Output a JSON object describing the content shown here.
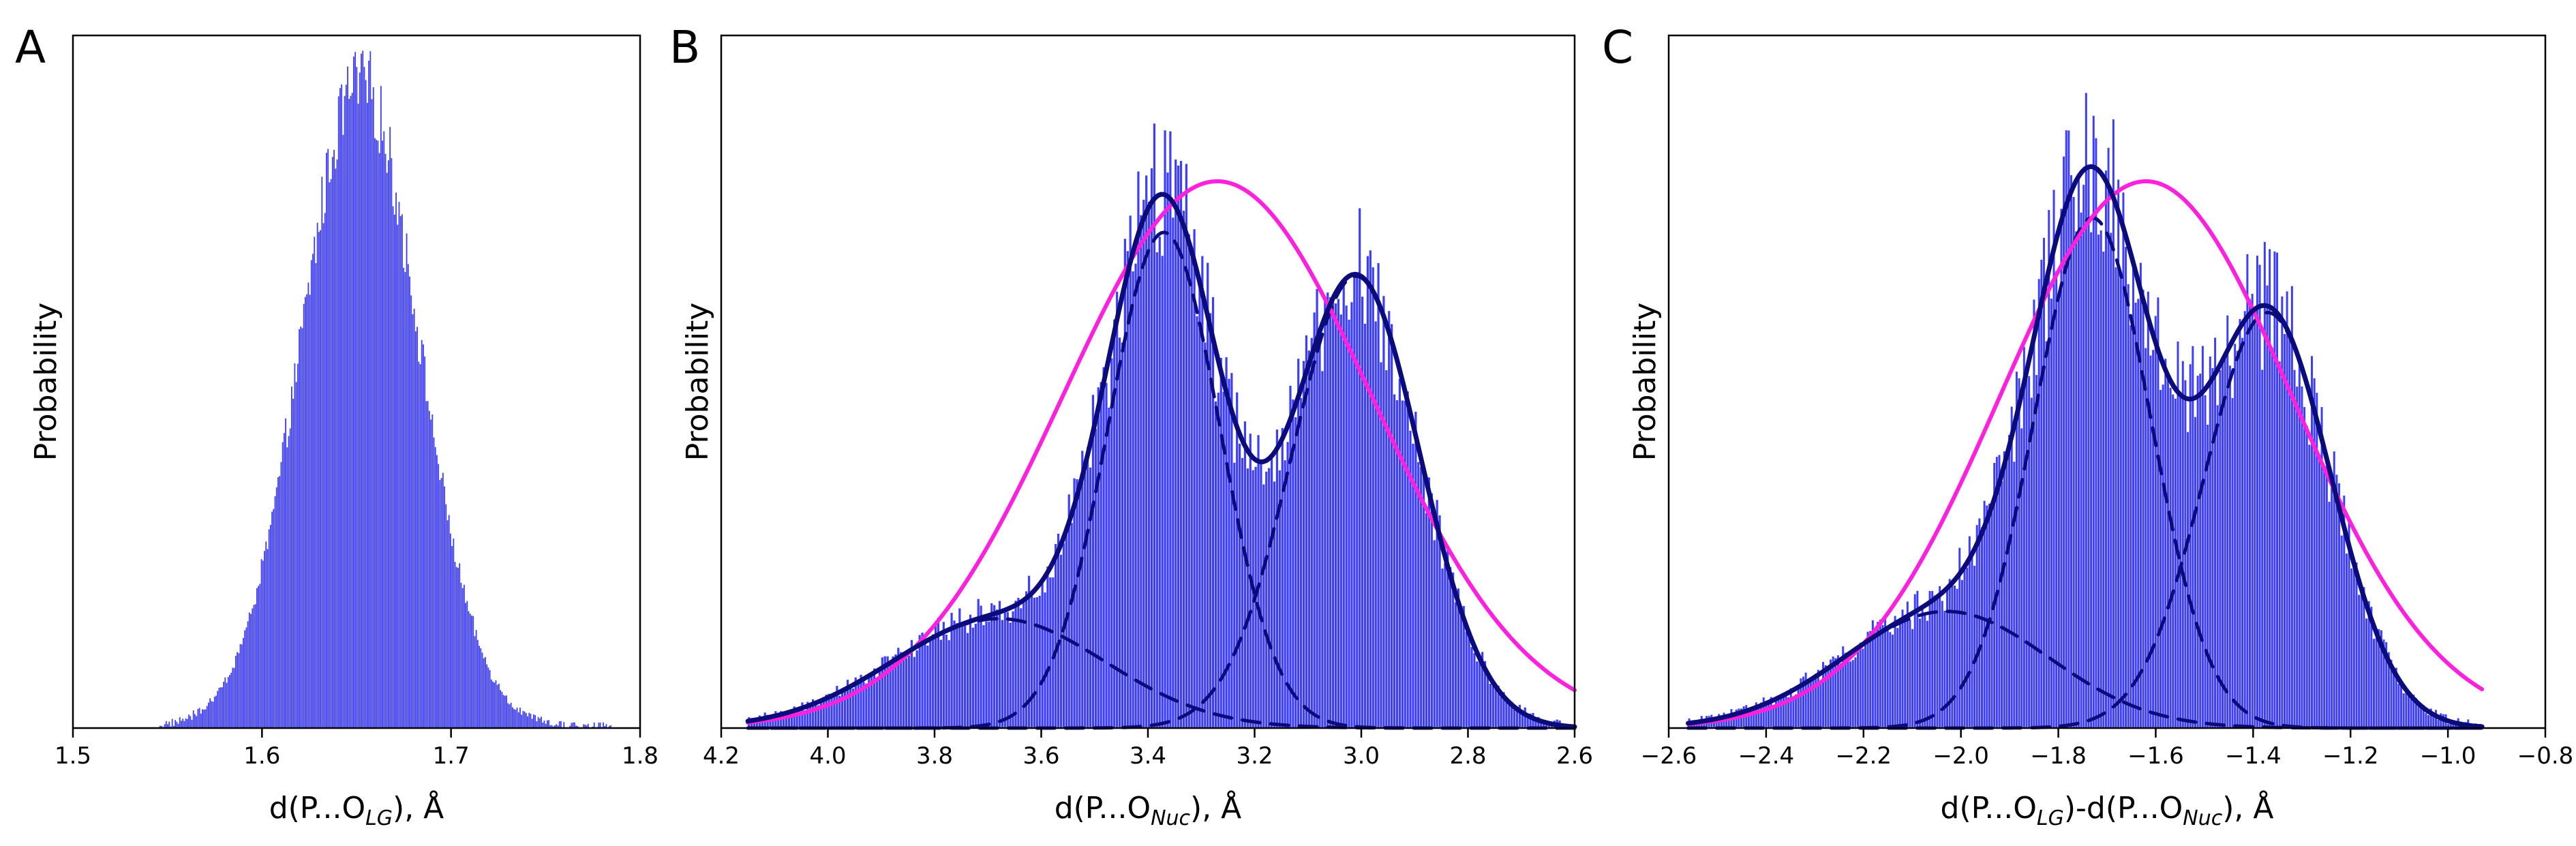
{
  "colors": {
    "bars": "#3d3dff",
    "total_fit": "#0b0b7a",
    "component_fit": "#0b0b7a",
    "single_gaussian": "#ff22dd"
  },
  "chart_data": [
    {
      "panel": "A",
      "type": "bar",
      "subtype": "histogram",
      "xlabel": "d(P...O",
      "xlabel_sub": "LG",
      "xlabel_tail": "), Å",
      "ylabel": "Probability",
      "xlim": [
        1.5,
        1.8
      ],
      "x_reversed": false,
      "xticks": [
        1.5,
        1.6,
        1.7,
        1.8
      ],
      "xtick_labels": [
        "1.5",
        "1.6",
        "1.7",
        "1.8"
      ],
      "y_tick_labels_visible": false,
      "histogram": {
        "range": [
          1.545,
          1.785
        ],
        "bins": 300,
        "center": 1.652,
        "sigma": 0.031,
        "peak": 0.93,
        "noise": 0.06
      },
      "curves": []
    },
    {
      "panel": "B",
      "type": "bar",
      "subtype": "histogram_with_fits",
      "xlabel": "d(P...O",
      "xlabel_sub": "Nuc",
      "xlabel_tail": "), Å",
      "ylabel": "Probability",
      "xlim": [
        4.2,
        2.6
      ],
      "x_reversed": true,
      "xticks": [
        4.2,
        4.0,
        3.8,
        3.6,
        3.4,
        3.2,
        3.0,
        2.8,
        2.6
      ],
      "xtick_labels": [
        "4.2",
        "4.0",
        "3.8",
        "3.6",
        "3.4",
        "3.2",
        "3.0",
        "2.8",
        "2.6"
      ],
      "y_tick_labels_visible": false,
      "histogram": {
        "range": [
          4.15,
          2.6
        ],
        "bins": 310,
        "noise": 0.14
      },
      "components": [
        {
          "name": "component 1",
          "center": 3.68,
          "sigma": 0.2,
          "amplitude": 0.15
        },
        {
          "name": "component 2",
          "center": 3.37,
          "sigma": 0.105,
          "amplitude": 0.68
        },
        {
          "name": "component 3",
          "center": 3.01,
          "sigma": 0.12,
          "amplitude": 0.62
        }
      ],
      "single_gaussian": {
        "center": 3.27,
        "sigma": 0.29,
        "amplitude": 0.75
      }
    },
    {
      "panel": "C",
      "type": "bar",
      "subtype": "histogram_with_fits",
      "xlabel": "d(P...O",
      "xlabel_sub": "LG",
      "xlabel_mid": ")-d(P...O",
      "xlabel_sub2": "Nuc",
      "xlabel_tail": "), Å",
      "ylabel": "Probability",
      "xlim": [
        -2.6,
        -0.8
      ],
      "x_reversed": false,
      "xticks": [
        -2.6,
        -2.4,
        -2.2,
        -2.0,
        -1.8,
        -1.6,
        -1.4,
        -1.2,
        -1.0,
        -0.8
      ],
      "xtick_labels": [
        "−2.6",
        "−2.4",
        "−2.2",
        "−2.0",
        "−1.8",
        "−1.6",
        "−1.4",
        "−1.2",
        "−1.0",
        "−0.8"
      ],
      "y_tick_labels_visible": false,
      "histogram": {
        "range": [
          -2.56,
          -0.93
        ],
        "bins": 320,
        "noise": 0.15
      },
      "components": [
        {
          "name": "component 1",
          "center": -2.03,
          "sigma": 0.21,
          "amplitude": 0.16
        },
        {
          "name": "component 2",
          "center": -1.73,
          "sigma": 0.12,
          "amplitude": 0.7
        },
        {
          "name": "component 3",
          "center": -1.37,
          "sigma": 0.13,
          "amplitude": 0.57
        }
      ],
      "single_gaussian": {
        "center": -1.62,
        "sigma": 0.3,
        "amplitude": 0.75
      }
    }
  ]
}
